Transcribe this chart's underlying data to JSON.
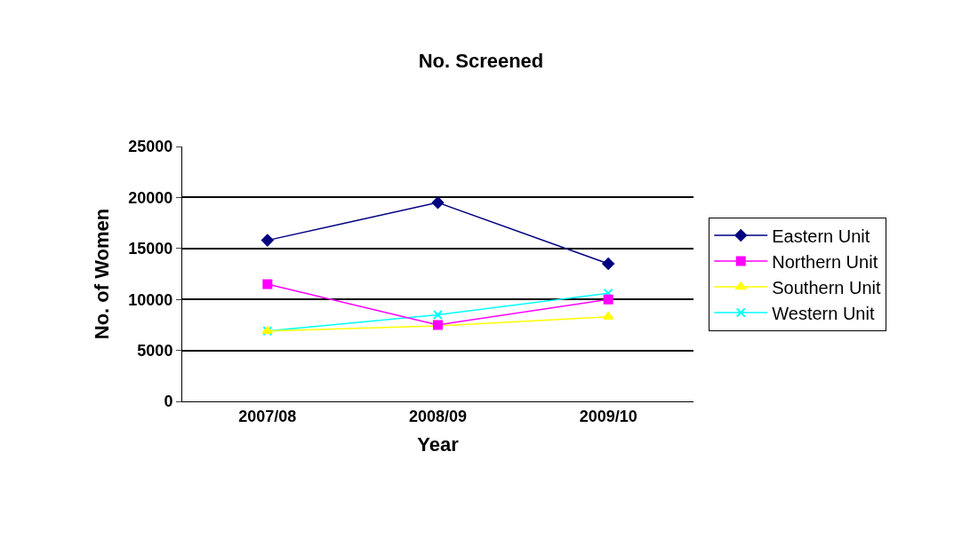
{
  "chart_data": {
    "type": "line",
    "title": "No. Screened",
    "xlabel": "Year",
    "ylabel": "No. of Women",
    "categories": [
      "2007/08",
      "2008/09",
      "2009/10"
    ],
    "series": [
      {
        "name": "Eastern Unit",
        "color": "#000080",
        "marker": "diamond",
        "values": [
          15800,
          19500,
          13500
        ]
      },
      {
        "name": "Northern Unit",
        "color": "#ff00ff",
        "marker": "square",
        "values": [
          11500,
          7500,
          10000
        ]
      },
      {
        "name": "Southern Unit",
        "color": "#ffff00",
        "marker": "triangle",
        "values": [
          6900,
          7400,
          8300
        ]
      },
      {
        "name": "Western Unit",
        "color": "#00ffff",
        "marker": "cross",
        "values": [
          6900,
          8500,
          10600
        ]
      }
    ],
    "ylim": [
      0,
      25000
    ],
    "yticks": [
      0,
      5000,
      10000,
      15000,
      20000,
      25000
    ],
    "grid": "y",
    "legend": "right",
    "line_style": "solid"
  }
}
